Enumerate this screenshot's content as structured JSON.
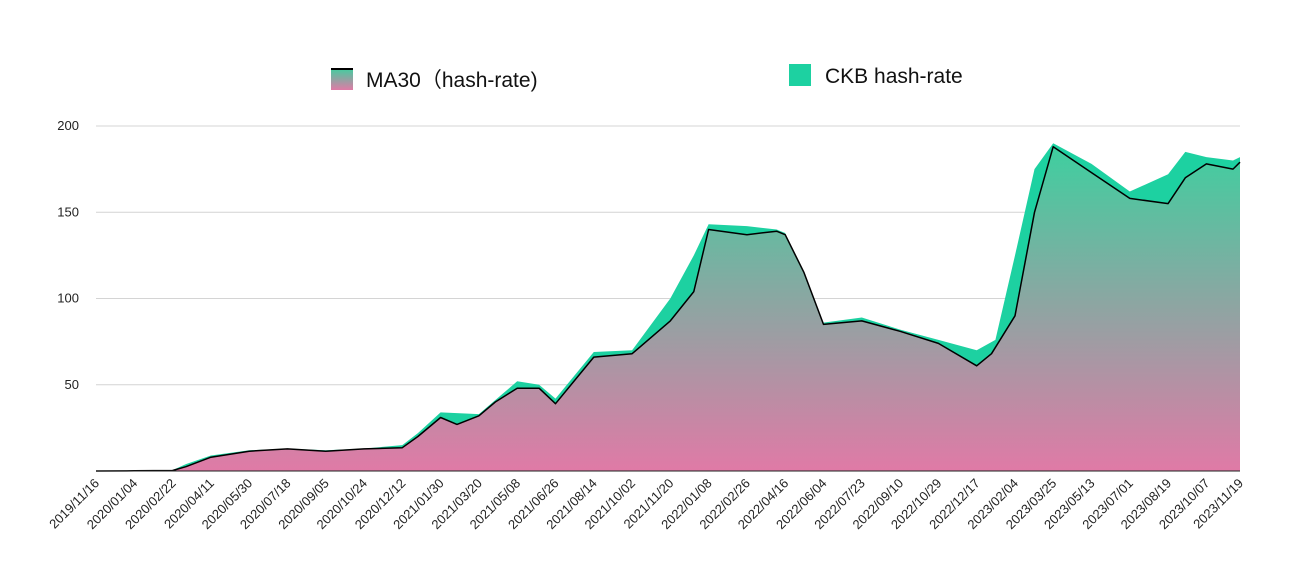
{
  "chart_data": {
    "type": "area",
    "title": "",
    "xlabel": "",
    "ylabel": "",
    "ylim": [
      0,
      200
    ],
    "y_ticks": [
      50,
      100,
      150,
      200
    ],
    "x_tick_labels": [
      "2019/11/16",
      "2020/01/04",
      "2020/02/22",
      "2020/04/11",
      "2020/05/30",
      "2020/07/18",
      "2020/09/05",
      "2020/10/24",
      "2020/12/12",
      "2021/01/30",
      "2021/03/20",
      "2021/05/08",
      "2021/06/26",
      "2021/08/14",
      "2021/10/02",
      "2021/11/20",
      "2022/01/08",
      "2022/02/26",
      "2022/04/16",
      "2022/06/04",
      "2022/07/23",
      "2022/09/10",
      "2022/10/29",
      "2022/12/17",
      "2023/02/04",
      "2023/03/25",
      "2023/05/13",
      "2023/07/01",
      "2023/08/19",
      "2023/10/07",
      "2023/11/19"
    ],
    "grid": true,
    "legend_position": "top",
    "series": [
      {
        "name": "CKB hash-rate",
        "color": "#1dd1a1",
        "x": [
          "2019/11/16",
          "2020/01/04",
          "2020/02/22",
          "2020/03/10",
          "2020/04/11",
          "2020/05/30",
          "2020/07/18",
          "2020/09/05",
          "2020/10/24",
          "2020/12/12",
          "2021/01/01",
          "2021/01/30",
          "2021/03/20",
          "2021/04/20",
          "2021/05/08",
          "2021/06/05",
          "2021/06/26",
          "2021/08/14",
          "2021/10/02",
          "2021/11/20",
          "2021/12/20",
          "2022/01/08",
          "2022/02/26",
          "2022/04/05",
          "2022/04/16",
          "2022/05/10",
          "2022/06/04",
          "2022/07/23",
          "2022/09/10",
          "2022/10/29",
          "2022/12/17",
          "2023/01/10",
          "2023/02/04",
          "2023/03/01",
          "2023/03/25",
          "2023/05/13",
          "2023/07/01",
          "2023/08/19",
          "2023/09/10",
          "2023/10/07",
          "2023/11/10",
          "2023/11/19"
        ],
        "values": [
          0,
          0.2,
          0.5,
          4,
          9,
          12,
          13,
          12,
          13,
          15,
          22,
          34,
          33,
          45,
          52,
          50,
          42,
          69,
          70,
          100,
          125,
          143,
          142,
          140,
          138,
          110,
          86,
          89,
          82,
          76,
          70,
          76,
          125,
          175,
          190,
          178,
          162,
          172,
          185,
          182,
          180,
          182
        ]
      },
      {
        "name": "MA30（hash-rate)",
        "color_top": "#3ecf9f",
        "color_bottom": "#e07aa6",
        "x": [
          "2019/11/16",
          "2020/01/04",
          "2020/02/22",
          "2020/03/10",
          "2020/04/11",
          "2020/05/30",
          "2020/07/18",
          "2020/09/05",
          "2020/10/24",
          "2020/12/12",
          "2021/01/01",
          "2021/01/30",
          "2021/02/20",
          "2021/03/20",
          "2021/04/10",
          "2021/05/08",
          "2021/06/05",
          "2021/06/26",
          "2021/08/14",
          "2021/10/02",
          "2021/11/20",
          "2021/12/20",
          "2022/01/08",
          "2022/02/26",
          "2022/04/05",
          "2022/04/16",
          "2022/05/10",
          "2022/06/04",
          "2022/07/23",
          "2022/09/10",
          "2022/10/29",
          "2022/12/17",
          "2023/01/05",
          "2023/02/04",
          "2023/03/01",
          "2023/03/25",
          "2023/05/13",
          "2023/07/01",
          "2023/08/19",
          "2023/09/10",
          "2023/10/07",
          "2023/11/10",
          "2023/11/19"
        ],
        "values": [
          0,
          0.1,
          0.3,
          2.5,
          8,
          11.5,
          12.8,
          11.5,
          12.8,
          13.5,
          20,
          31,
          27,
          32,
          40,
          48,
          48,
          39,
          66,
          68,
          87,
          104,
          140,
          137,
          139,
          137,
          115,
          85,
          87,
          81,
          74,
          61,
          68,
          90,
          150,
          188,
          173,
          158,
          155,
          170,
          178,
          175,
          179
        ]
      }
    ]
  }
}
